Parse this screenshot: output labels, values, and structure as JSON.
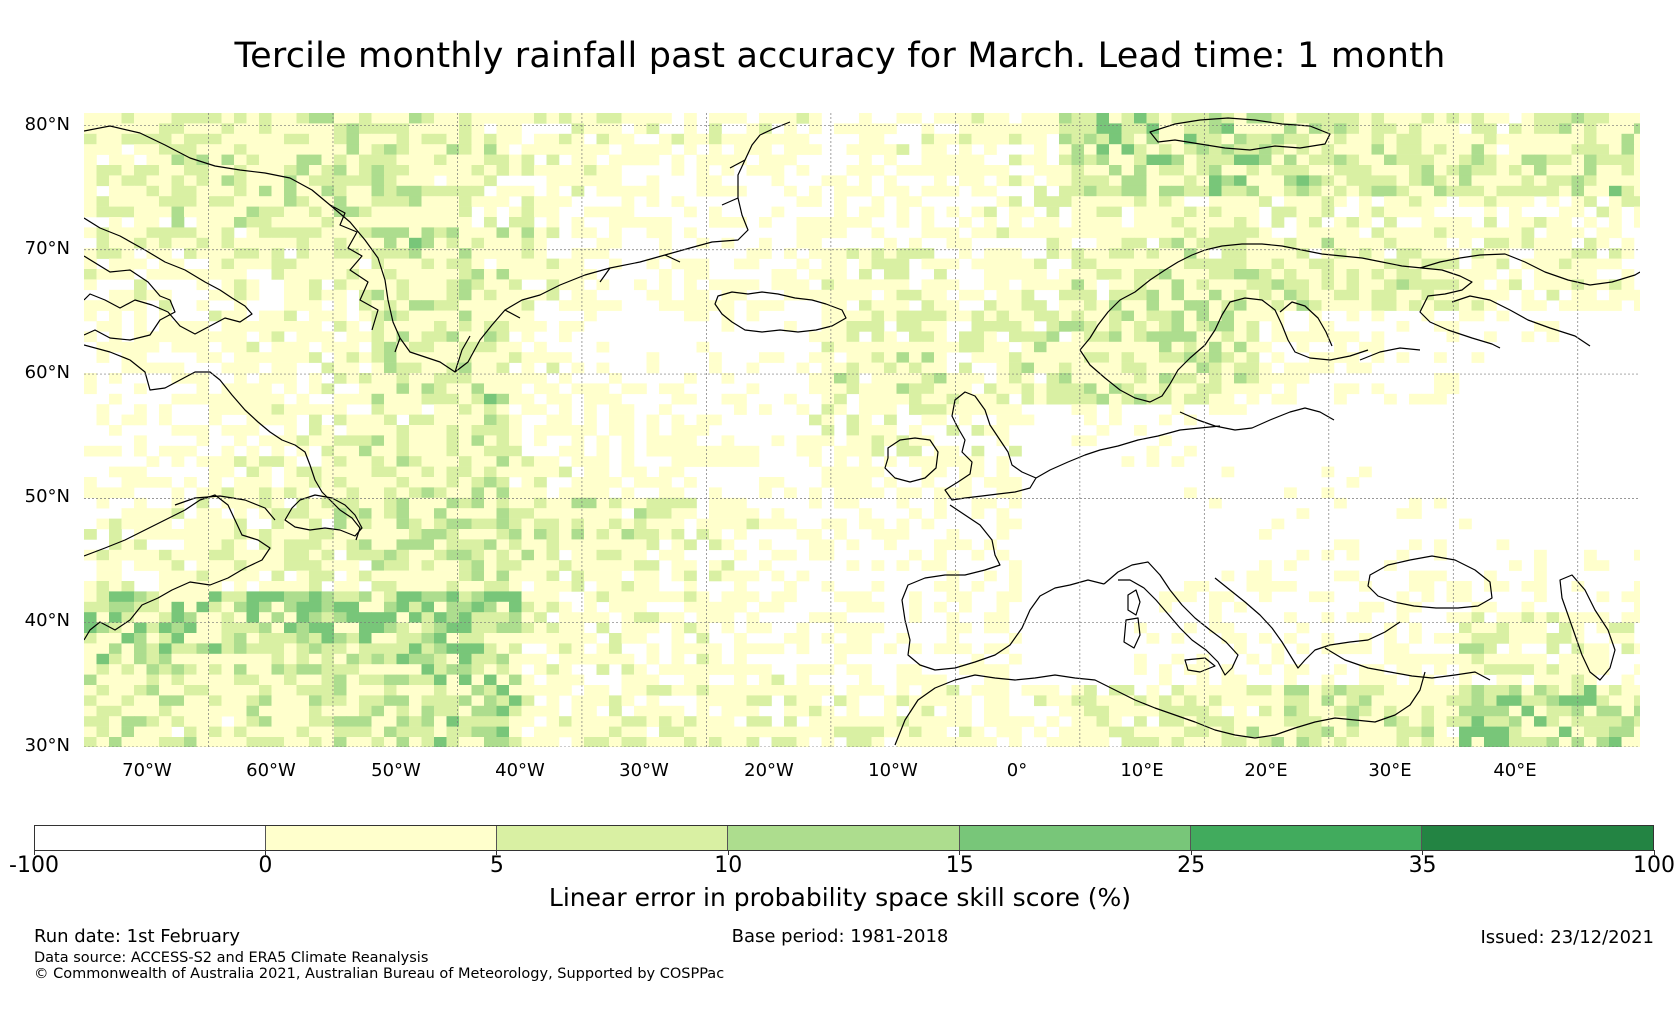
{
  "title": "Tercile monthly rainfall past accuracy for March. Lead time: 1 month",
  "map": {
    "lat_labels": [
      "80°N",
      "70°N",
      "60°N",
      "50°N",
      "40°N",
      "30°N"
    ],
    "lat_values": [
      80,
      70,
      60,
      50,
      40,
      30
    ],
    "lon_labels": [
      "70°W",
      "60°W",
      "50°W",
      "40°W",
      "30°W",
      "20°W",
      "10°W",
      "0°",
      "10°E",
      "20°E",
      "30°E",
      "40°E"
    ],
    "lon_values": [
      -70,
      -60,
      -50,
      -40,
      -30,
      -20,
      -10,
      0,
      10,
      20,
      30,
      40
    ],
    "extent": {
      "lon_min": -80,
      "lon_max": 45,
      "lat_min": 30,
      "lat_max": 81
    }
  },
  "colorbar": {
    "boundaries": [
      "-100",
      "0",
      "5",
      "10",
      "15",
      "25",
      "35",
      "100"
    ],
    "colors": [
      "#ffffff",
      "#ffffcc",
      "#d9f0a3",
      "#addd8e",
      "#78c679",
      "#41ab5d",
      "#238443"
    ],
    "label": "Linear error in probability space skill score (%)"
  },
  "footer": {
    "run_date": "Run date: 1st February",
    "base_period": "Base period: 1981-2018",
    "issued": "Issued: 23/12/2021",
    "data_source": "Data source: ACCESS-S2 and ERA5 Climate Reanalysis",
    "copyright": "© Commonwealth of Australia 2021, Australian Bureau of Meteorology, Supported by COSPPac"
  }
}
